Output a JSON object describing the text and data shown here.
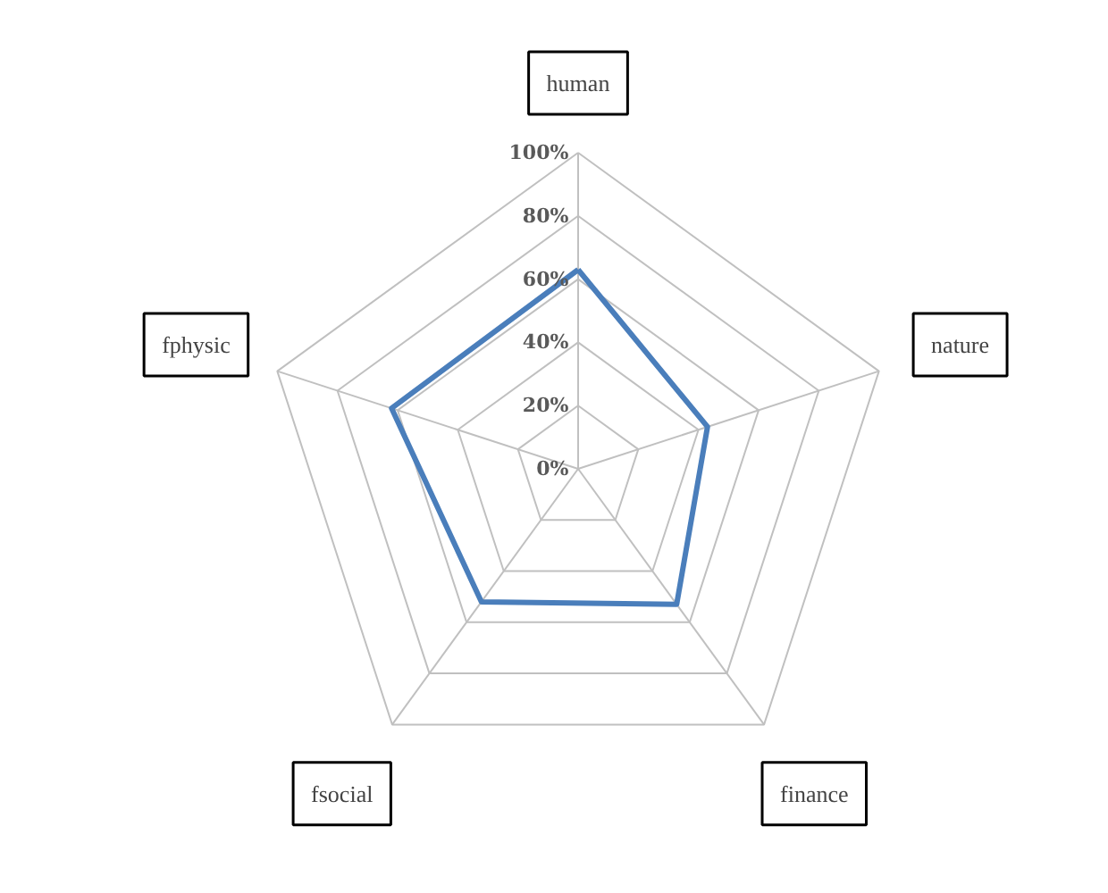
{
  "chart_data": {
    "type": "radar",
    "categories": [
      "human",
      "nature",
      "finance",
      "fsocial",
      "fphysic"
    ],
    "series": [
      {
        "color": "#4a7ebb",
        "values": [
          63,
          43,
          53,
          52,
          62
        ]
      }
    ],
    "ylim": [
      0,
      100
    ],
    "yticks": [
      {
        "value": 0,
        "label": "0%"
      },
      {
        "value": 20,
        "label": "20%"
      },
      {
        "value": 40,
        "label": "40%"
      },
      {
        "value": 60,
        "label": "60%"
      },
      {
        "value": 80,
        "label": "80%"
      },
      {
        "value": 100,
        "label": "100%"
      }
    ],
    "grid": true,
    "marker": "none",
    "line_style": "solid"
  }
}
